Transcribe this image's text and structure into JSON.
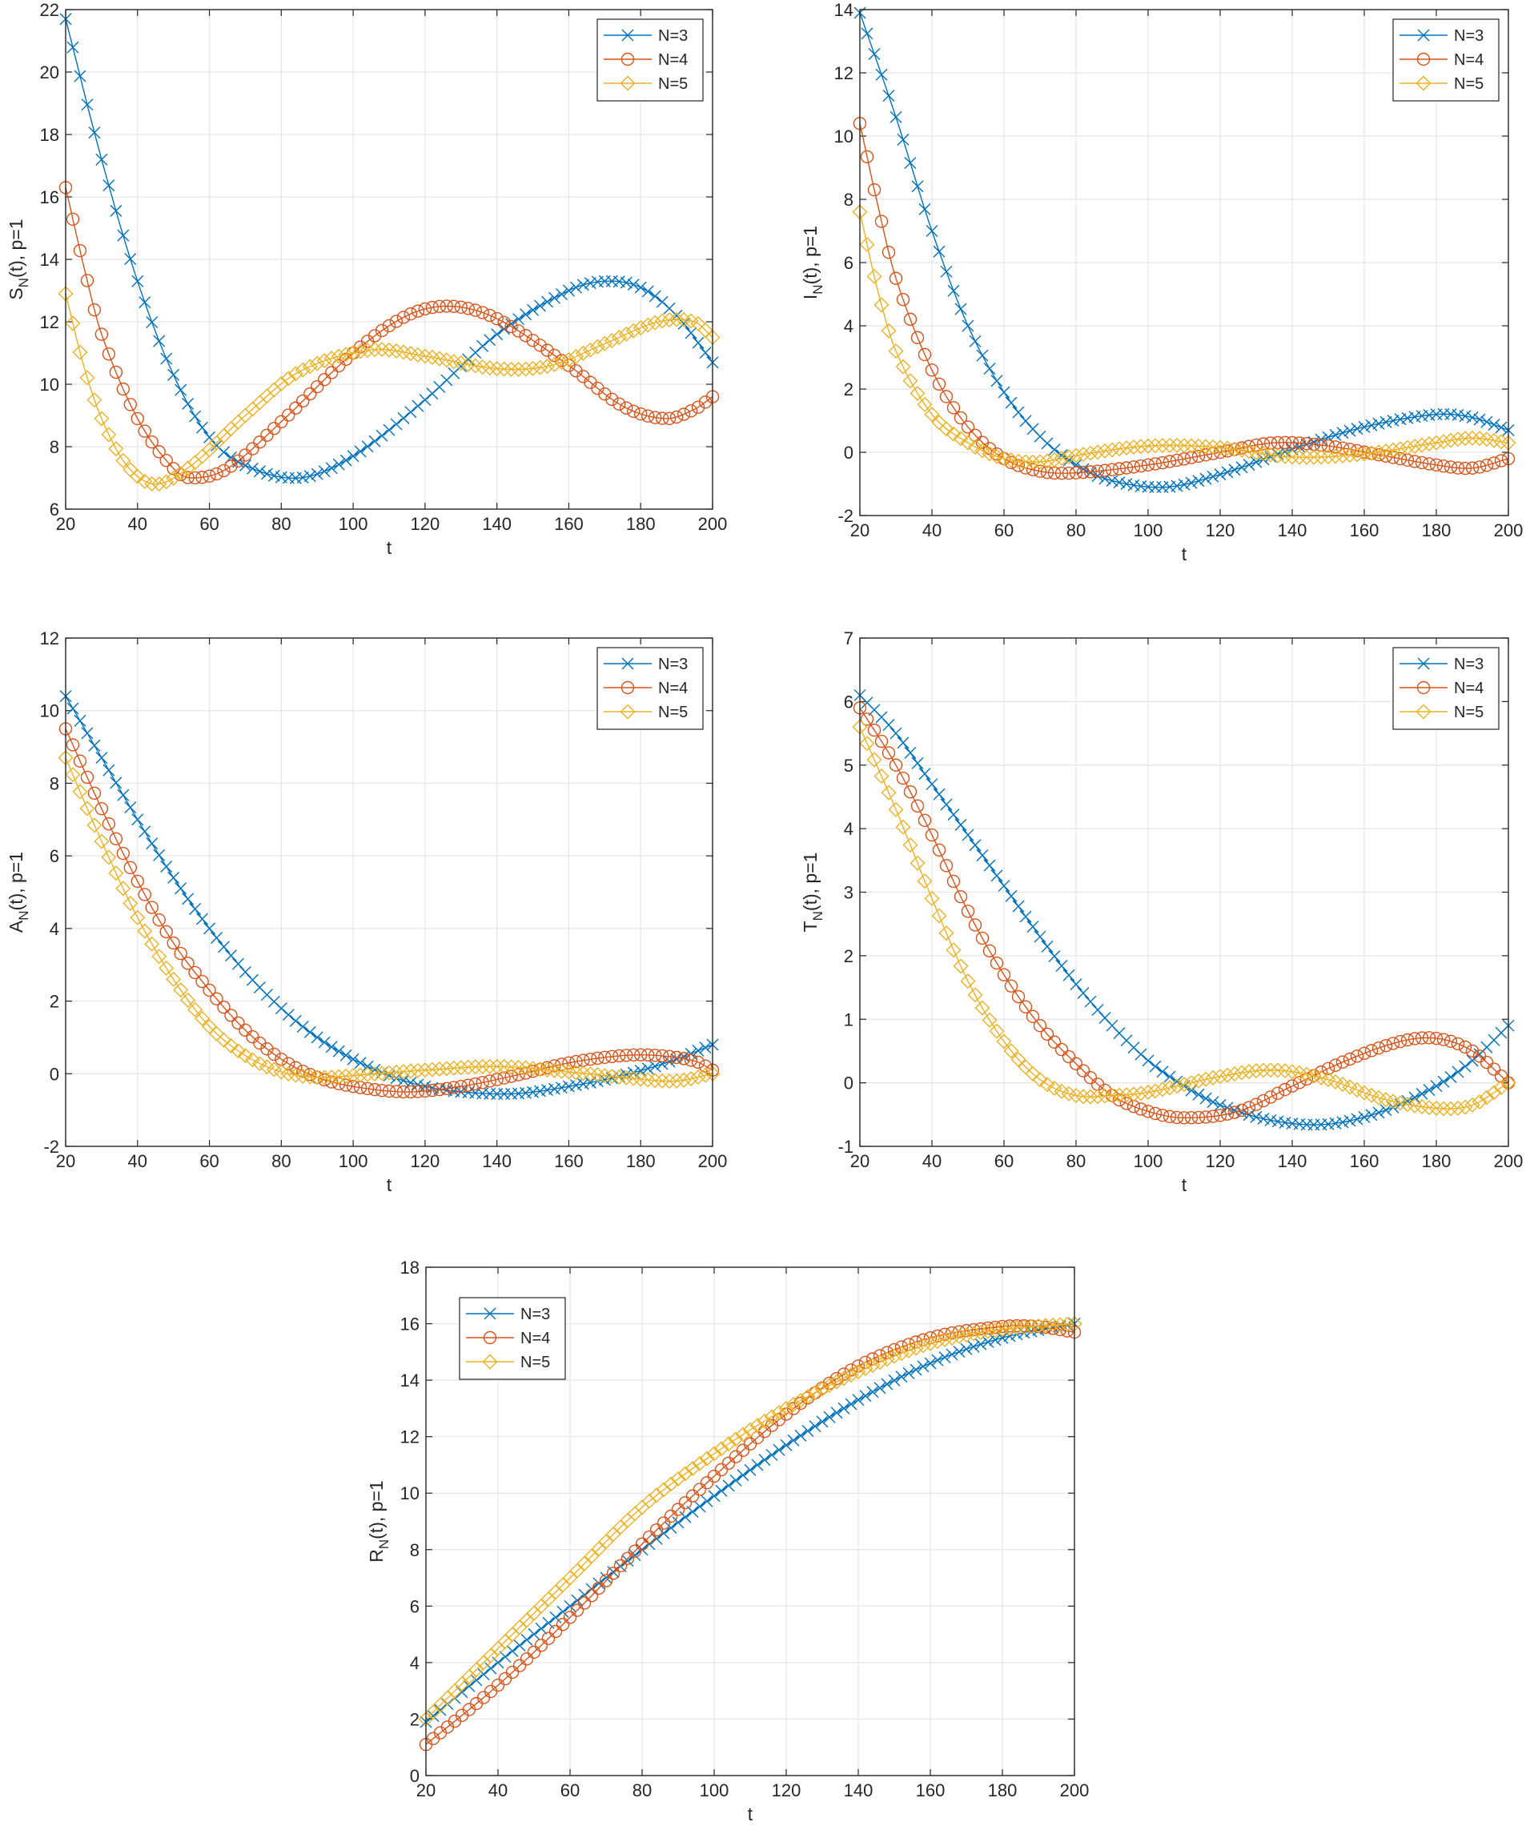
{
  "colors": {
    "N3": "#0072BD",
    "N4": "#D95319",
    "N5": "#EDB120"
  },
  "chart_data": [
    {
      "type": "line",
      "ylabel_main": "S",
      "ylabel_sub": "N",
      "ylabel_tail": "(t), p=1",
      "xlabel": "t",
      "xlim": [
        20,
        200
      ],
      "ylim": [
        6,
        22
      ],
      "xticks": [
        "20",
        "40",
        "60",
        "80",
        "100",
        "120",
        "140",
        "160",
        "180",
        "200"
      ],
      "yticks": [
        "6",
        "8",
        "10",
        "12",
        "14",
        "16",
        "18",
        "20",
        "22"
      ],
      "legend_position": "top-right",
      "series": [
        {
          "name": "N=3",
          "marker": "x",
          "points": [
            [
              20,
              21.7
            ],
            [
              30,
              17.2
            ],
            [
              40,
              13.3
            ],
            [
              50,
              10.3
            ],
            [
              60,
              8.3
            ],
            [
              70,
              7.4
            ],
            [
              85,
              7.0
            ],
            [
              100,
              7.7
            ],
            [
              120,
              9.5
            ],
            [
              140,
              11.6
            ],
            [
              160,
              13.0
            ],
            [
              170,
              13.3
            ],
            [
              180,
              13.1
            ],
            [
              190,
              12.2
            ],
            [
              200,
              10.7
            ]
          ]
        },
        {
          "name": "N=4",
          "marker": "o",
          "points": [
            [
              20,
              16.3
            ],
            [
              25,
              13.8
            ],
            [
              30,
              11.6
            ],
            [
              40,
              8.9
            ],
            [
              50,
              7.3
            ],
            [
              55,
              7.0
            ],
            [
              65,
              7.3
            ],
            [
              80,
              8.8
            ],
            [
              100,
              11.0
            ],
            [
              115,
              12.2
            ],
            [
              127,
              12.5
            ],
            [
              140,
              12.1
            ],
            [
              160,
              10.6
            ],
            [
              175,
              9.3
            ],
            [
              187,
              8.9
            ],
            [
              195,
              9.2
            ],
            [
              200,
              9.6
            ]
          ]
        },
        {
          "name": "N=5",
          "marker": "diamond",
          "points": [
            [
              20,
              12.9
            ],
            [
              25,
              10.6
            ],
            [
              30,
              8.9
            ],
            [
              37,
              7.4
            ],
            [
              45,
              6.8
            ],
            [
              55,
              7.4
            ],
            [
              70,
              9.0
            ],
            [
              85,
              10.4
            ],
            [
              105,
              11.1
            ],
            [
              120,
              10.9
            ],
            [
              140,
              10.5
            ],
            [
              155,
              10.6
            ],
            [
              170,
              11.3
            ],
            [
              185,
              12.0
            ],
            [
              195,
              12.0
            ],
            [
              200,
              11.5
            ]
          ]
        }
      ]
    },
    {
      "type": "line",
      "ylabel_main": "I",
      "ylabel_sub": "N",
      "ylabel_tail": "(t), p=1",
      "xlabel": "t",
      "xlim": [
        20,
        200
      ],
      "ylim": [
        -2,
        14
      ],
      "xticks": [
        "20",
        "40",
        "60",
        "80",
        "100",
        "120",
        "140",
        "160",
        "180",
        "200"
      ],
      "yticks": [
        "-2",
        "0",
        "2",
        "4",
        "6",
        "8",
        "10",
        "12",
        "14"
      ],
      "legend_position": "top-right",
      "series": [
        {
          "name": "N=3",
          "marker": "x",
          "points": [
            [
              20,
              13.9
            ],
            [
              30,
              10.6
            ],
            [
              40,
              7.0
            ],
            [
              50,
              4.0
            ],
            [
              60,
              1.9
            ],
            [
              70,
              0.5
            ],
            [
              80,
              -0.4
            ],
            [
              90,
              -0.9
            ],
            [
              105,
              -1.1
            ],
            [
              120,
              -0.7
            ],
            [
              140,
              0.1
            ],
            [
              160,
              0.8
            ],
            [
              180,
              1.2
            ],
            [
              190,
              1.1
            ],
            [
              200,
              0.7
            ]
          ]
        },
        {
          "name": "N=4",
          "marker": "o",
          "points": [
            [
              20,
              10.4
            ],
            [
              25,
              7.8
            ],
            [
              30,
              5.5
            ],
            [
              40,
              2.6
            ],
            [
              50,
              0.8
            ],
            [
              60,
              -0.2
            ],
            [
              70,
              -0.6
            ],
            [
              80,
              -0.65
            ],
            [
              100,
              -0.4
            ],
            [
              120,
              0.0
            ],
            [
              135,
              0.3
            ],
            [
              150,
              0.2
            ],
            [
              165,
              -0.1
            ],
            [
              180,
              -0.4
            ],
            [
              190,
              -0.5
            ],
            [
              200,
              -0.2
            ]
          ]
        },
        {
          "name": "N=5",
          "marker": "diamond",
          "points": [
            [
              20,
              7.6
            ],
            [
              25,
              5.1
            ],
            [
              30,
              3.2
            ],
            [
              40,
              1.2
            ],
            [
              50,
              0.3
            ],
            [
              60,
              -0.2
            ],
            [
              70,
              -0.3
            ],
            [
              80,
              -0.1
            ],
            [
              100,
              0.2
            ],
            [
              120,
              0.15
            ],
            [
              140,
              -0.15
            ],
            [
              160,
              -0.05
            ],
            [
              180,
              0.3
            ],
            [
              190,
              0.45
            ],
            [
              200,
              0.3
            ]
          ]
        }
      ]
    },
    {
      "type": "line",
      "ylabel_main": "A",
      "ylabel_sub": "N",
      "ylabel_tail": "(t), p=1",
      "xlabel": "t",
      "xlim": [
        20,
        200
      ],
      "ylim": [
        -2,
        12
      ],
      "xticks": [
        "20",
        "40",
        "60",
        "80",
        "100",
        "120",
        "140",
        "160",
        "180",
        "200"
      ],
      "yticks": [
        "-2",
        "0",
        "2",
        "4",
        "6",
        "8",
        "10",
        "12"
      ],
      "legend_position": "top-right",
      "series": [
        {
          "name": "N=3",
          "marker": "x",
          "points": [
            [
              20,
              10.4
            ],
            [
              30,
              8.7
            ],
            [
              40,
              7.0
            ],
            [
              50,
              5.4
            ],
            [
              60,
              4.0
            ],
            [
              70,
              2.8
            ],
            [
              80,
              1.8
            ],
            [
              90,
              1.0
            ],
            [
              100,
              0.4
            ],
            [
              110,
              -0.05
            ],
            [
              120,
              -0.35
            ],
            [
              130,
              -0.5
            ],
            [
              145,
              -0.55
            ],
            [
              160,
              -0.35
            ],
            [
              175,
              -0.05
            ],
            [
              190,
              0.4
            ],
            [
              200,
              0.8
            ]
          ]
        },
        {
          "name": "N=4",
          "marker": "o",
          "points": [
            [
              20,
              9.5
            ],
            [
              30,
              7.3
            ],
            [
              40,
              5.3
            ],
            [
              50,
              3.6
            ],
            [
              60,
              2.3
            ],
            [
              70,
              1.2
            ],
            [
              80,
              0.4
            ],
            [
              90,
              -0.1
            ],
            [
              100,
              -0.35
            ],
            [
              115,
              -0.5
            ],
            [
              130,
              -0.35
            ],
            [
              145,
              -0.05
            ],
            [
              160,
              0.3
            ],
            [
              175,
              0.5
            ],
            [
              185,
              0.5
            ],
            [
              195,
              0.35
            ],
            [
              200,
              0.1
            ]
          ]
        },
        {
          "name": "N=5",
          "marker": "diamond",
          "points": [
            [
              20,
              8.7
            ],
            [
              30,
              6.4
            ],
            [
              40,
              4.3
            ],
            [
              50,
              2.6
            ],
            [
              60,
              1.3
            ],
            [
              70,
              0.5
            ],
            [
              80,
              0.05
            ],
            [
              90,
              -0.1
            ],
            [
              100,
              -0.05
            ],
            [
              120,
              0.1
            ],
            [
              140,
              0.2
            ],
            [
              160,
              0.05
            ],
            [
              180,
              -0.15
            ],
            [
              190,
              -0.2
            ],
            [
              200,
              0.0
            ]
          ]
        }
      ]
    },
    {
      "type": "line",
      "ylabel_main": "T",
      "ylabel_sub": "N",
      "ylabel_tail": "(t), p=1",
      "xlabel": "t",
      "xlim": [
        20,
        200
      ],
      "ylim": [
        -1,
        7
      ],
      "xticks": [
        "20",
        "40",
        "60",
        "80",
        "100",
        "120",
        "140",
        "160",
        "180",
        "200"
      ],
      "yticks": [
        "-1",
        "0",
        "1",
        "2",
        "3",
        "4",
        "5",
        "6",
        "7"
      ],
      "legend_position": "top-right",
      "series": [
        {
          "name": "N=3",
          "marker": "x",
          "points": [
            [
              20,
              6.1
            ],
            [
              30,
              5.5
            ],
            [
              40,
              4.7
            ],
            [
              50,
              3.9
            ],
            [
              60,
              3.1
            ],
            [
              70,
              2.3
            ],
            [
              80,
              1.55
            ],
            [
              90,
              0.9
            ],
            [
              100,
              0.35
            ],
            [
              110,
              -0.05
            ],
            [
              120,
              -0.35
            ],
            [
              135,
              -0.6
            ],
            [
              150,
              -0.65
            ],
            [
              165,
              -0.45
            ],
            [
              180,
              -0.05
            ],
            [
              190,
              0.35
            ],
            [
              200,
              0.9
            ]
          ]
        },
        {
          "name": "N=4",
          "marker": "o",
          "points": [
            [
              20,
              5.9
            ],
            [
              30,
              5.0
            ],
            [
              40,
              3.9
            ],
            [
              50,
              2.7
            ],
            [
              60,
              1.7
            ],
            [
              70,
              0.9
            ],
            [
              80,
              0.3
            ],
            [
              90,
              -0.2
            ],
            [
              100,
              -0.45
            ],
            [
              110,
              -0.55
            ],
            [
              125,
              -0.45
            ],
            [
              140,
              -0.05
            ],
            [
              155,
              0.35
            ],
            [
              170,
              0.65
            ],
            [
              180,
              0.7
            ],
            [
              190,
              0.5
            ],
            [
              200,
              0.0
            ]
          ]
        },
        {
          "name": "N=5",
          "marker": "diamond",
          "points": [
            [
              20,
              5.6
            ],
            [
              30,
              4.3
            ],
            [
              40,
              2.9
            ],
            [
              50,
              1.6
            ],
            [
              60,
              0.65
            ],
            [
              70,
              0.05
            ],
            [
              80,
              -0.2
            ],
            [
              90,
              -0.2
            ],
            [
              100,
              -0.15
            ],
            [
              120,
              0.1
            ],
            [
              135,
              0.2
            ],
            [
              150,
              0.05
            ],
            [
              165,
              -0.25
            ],
            [
              180,
              -0.4
            ],
            [
              190,
              -0.35
            ],
            [
              200,
              0.0
            ]
          ]
        }
      ]
    },
    {
      "type": "line",
      "ylabel_main": "R",
      "ylabel_sub": "N",
      "ylabel_tail": "(t), p=1",
      "xlabel": "t",
      "xlim": [
        20,
        200
      ],
      "ylim": [
        0,
        18
      ],
      "xticks": [
        "20",
        "40",
        "60",
        "80",
        "100",
        "120",
        "140",
        "160",
        "180",
        "200"
      ],
      "yticks": [
        "0",
        "2",
        "4",
        "6",
        "8",
        "10",
        "12",
        "14",
        "16",
        "18"
      ],
      "legend_position": "top-left",
      "series": [
        {
          "name": "N=3",
          "marker": "x",
          "points": [
            [
              20,
              1.9
            ],
            [
              40,
              4.0
            ],
            [
              60,
              6.0
            ],
            [
              80,
              8.0
            ],
            [
              100,
              9.9
            ],
            [
              120,
              11.7
            ],
            [
              140,
              13.3
            ],
            [
              160,
              14.6
            ],
            [
              180,
              15.5
            ],
            [
              200,
              16.0
            ]
          ]
        },
        {
          "name": "N=4",
          "marker": "o",
          "points": [
            [
              20,
              1.1
            ],
            [
              40,
              3.2
            ],
            [
              60,
              5.6
            ],
            [
              80,
              8.2
            ],
            [
              100,
              10.6
            ],
            [
              120,
              12.8
            ],
            [
              140,
              14.5
            ],
            [
              160,
              15.5
            ],
            [
              180,
              15.9
            ],
            [
              190,
              15.9
            ],
            [
              200,
              15.7
            ]
          ]
        },
        {
          "name": "N=5",
          "marker": "diamond",
          "points": [
            [
              20,
              2.0
            ],
            [
              40,
              4.5
            ],
            [
              60,
              7.0
            ],
            [
              80,
              9.5
            ],
            [
              100,
              11.4
            ],
            [
              120,
              13.0
            ],
            [
              140,
              14.3
            ],
            [
              160,
              15.3
            ],
            [
              180,
              15.8
            ],
            [
              200,
              16.0
            ]
          ]
        }
      ]
    }
  ]
}
